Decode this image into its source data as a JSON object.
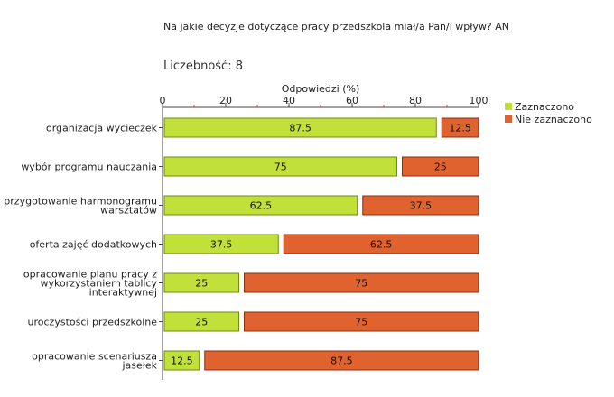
{
  "question": "Na jakie decyzje dotyczące pracy przedszkola miał/a Pan/i wpływ? AN",
  "count_label": "Liczebność: 8",
  "colors": {
    "selected": "#c2e03a",
    "selected_stroke": "#6f8a10",
    "not_selected": "#e0622f",
    "not_selected_stroke": "#8a2e0e",
    "axis": "#444444",
    "tick_minor": "#cc3333"
  },
  "chart_data": {
    "type": "bar",
    "orientation": "horizontal",
    "stacked": true,
    "xlabel": "Odpowiedzi (%)",
    "xlim": [
      0,
      100
    ],
    "xticks": [
      "0",
      "20",
      "40",
      "60",
      "80",
      "100"
    ],
    "legend_position": "right",
    "categories": [
      [
        "organizacja wycieczek"
      ],
      [
        "wybór programu nauczania"
      ],
      [
        "przygotowanie harmonogramu",
        "warsztatów"
      ],
      [
        "oferta zajęć dodatkowych"
      ],
      [
        "opracowanie planu pracy z",
        "wykorzystaniem tablicy",
        "interaktywnej"
      ],
      [
        "uroczystości przedszkolne"
      ],
      [
        "opracowanie scenariusza",
        "jasełek"
      ]
    ],
    "series": [
      {
        "name": "Zaznaczono",
        "values": [
          87.5,
          75,
          62.5,
          37.5,
          25,
          25,
          12.5
        ],
        "labels": [
          "87.5",
          "75",
          "62.5",
          "37.5",
          "25",
          "25",
          "12.5"
        ]
      },
      {
        "name": "Nie zaznaczono",
        "values": [
          12.5,
          25,
          37.5,
          62.5,
          75,
          75,
          87.5
        ],
        "labels": [
          "12.5",
          "25",
          "37.5",
          "62.5",
          "75",
          "75",
          "87.5"
        ]
      }
    ]
  }
}
